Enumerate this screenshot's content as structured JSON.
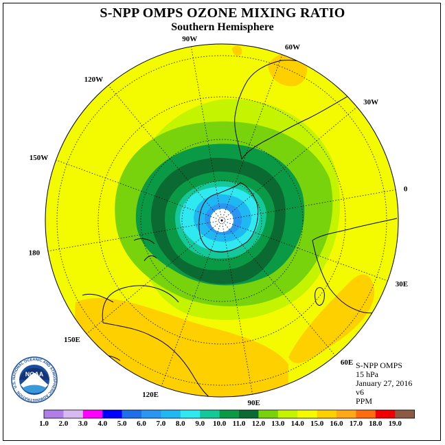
{
  "title": "S-NPP OMPS OZONE MIXING RATIO",
  "subtitle": "Southern Hemisphere",
  "logo_text": "NOAA",
  "logo_ring_text": "NATIONAL OCEANIC AND ATMOSPHERIC ADMINISTRATION · U.S. DEPARTMENT OF COMMERCE",
  "info": {
    "instrument": "S-NPP OMPS",
    "level": "15 hPa",
    "date": "January 27, 2016",
    "version": "v6",
    "units": "PPM"
  },
  "longitude_labels": [
    "0",
    "30E",
    "60E",
    "90E",
    "120E",
    "150E",
    "180",
    "150W",
    "120W",
    "90W",
    "60W",
    "30W"
  ],
  "colorbar": {
    "labels": [
      "1.0",
      "2.0",
      "3.0",
      "4.0",
      "5.0",
      "6.0",
      "7.0",
      "8.0",
      "9.0",
      "10.0",
      "11.0",
      "12.0",
      "13.0",
      "14.0",
      "15.0",
      "16.0",
      "17.0",
      "18.0",
      "19.0"
    ],
    "colors": [
      "#b07ee8",
      "#d8b8f0",
      "#ff00ff",
      "#0000ff",
      "#1f6fe8",
      "#2b96f2",
      "#20b8f2",
      "#30e8f0",
      "#15c89a",
      "#0a9a46",
      "#0a6a32",
      "#78d20c",
      "#c4f400",
      "#f4fa00",
      "#ffd000",
      "#ffa818",
      "#ff6c10",
      "#f00000",
      "#8a5a44"
    ]
  },
  "colors": {
    "ocean_max": "#f4fa00",
    "coast": "#000000"
  }
}
